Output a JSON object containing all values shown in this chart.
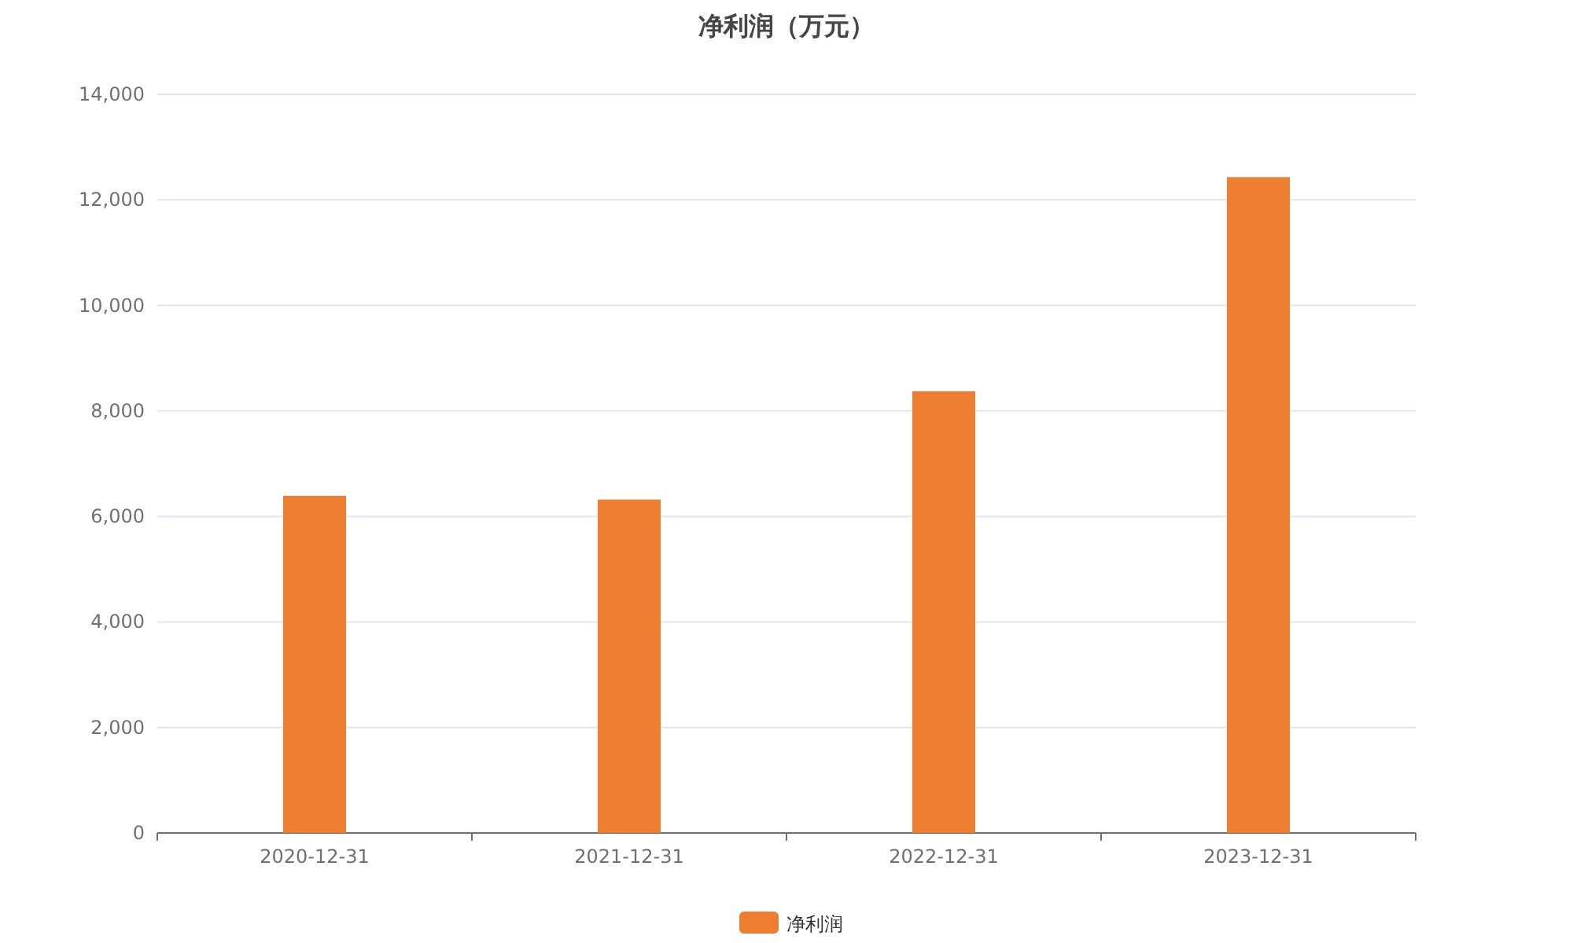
{
  "chart_data": {
    "type": "bar",
    "title": "净利润（万元）",
    "categories": [
      "2020-12-31",
      "2021-12-31",
      "2022-12-31",
      "2023-12-31"
    ],
    "series": [
      {
        "name": "净利润",
        "color": "#ed7d31",
        "values": [
          6390,
          6320,
          8370,
          12430
        ]
      }
    ],
    "ylim": [
      0,
      14000
    ],
    "yticks": [
      {
        "value": 0,
        "label": "0"
      },
      {
        "value": 2000,
        "label": "2,000"
      },
      {
        "value": 4000,
        "label": "4,000"
      },
      {
        "value": 6000,
        "label": "6,000"
      },
      {
        "value": 8000,
        "label": "8,000"
      },
      {
        "value": 10000,
        "label": "10,000"
      },
      {
        "value": 12000,
        "label": "12,000"
      },
      {
        "value": 14000,
        "label": "14,000"
      }
    ],
    "grid": "y",
    "legend": "bottom"
  }
}
